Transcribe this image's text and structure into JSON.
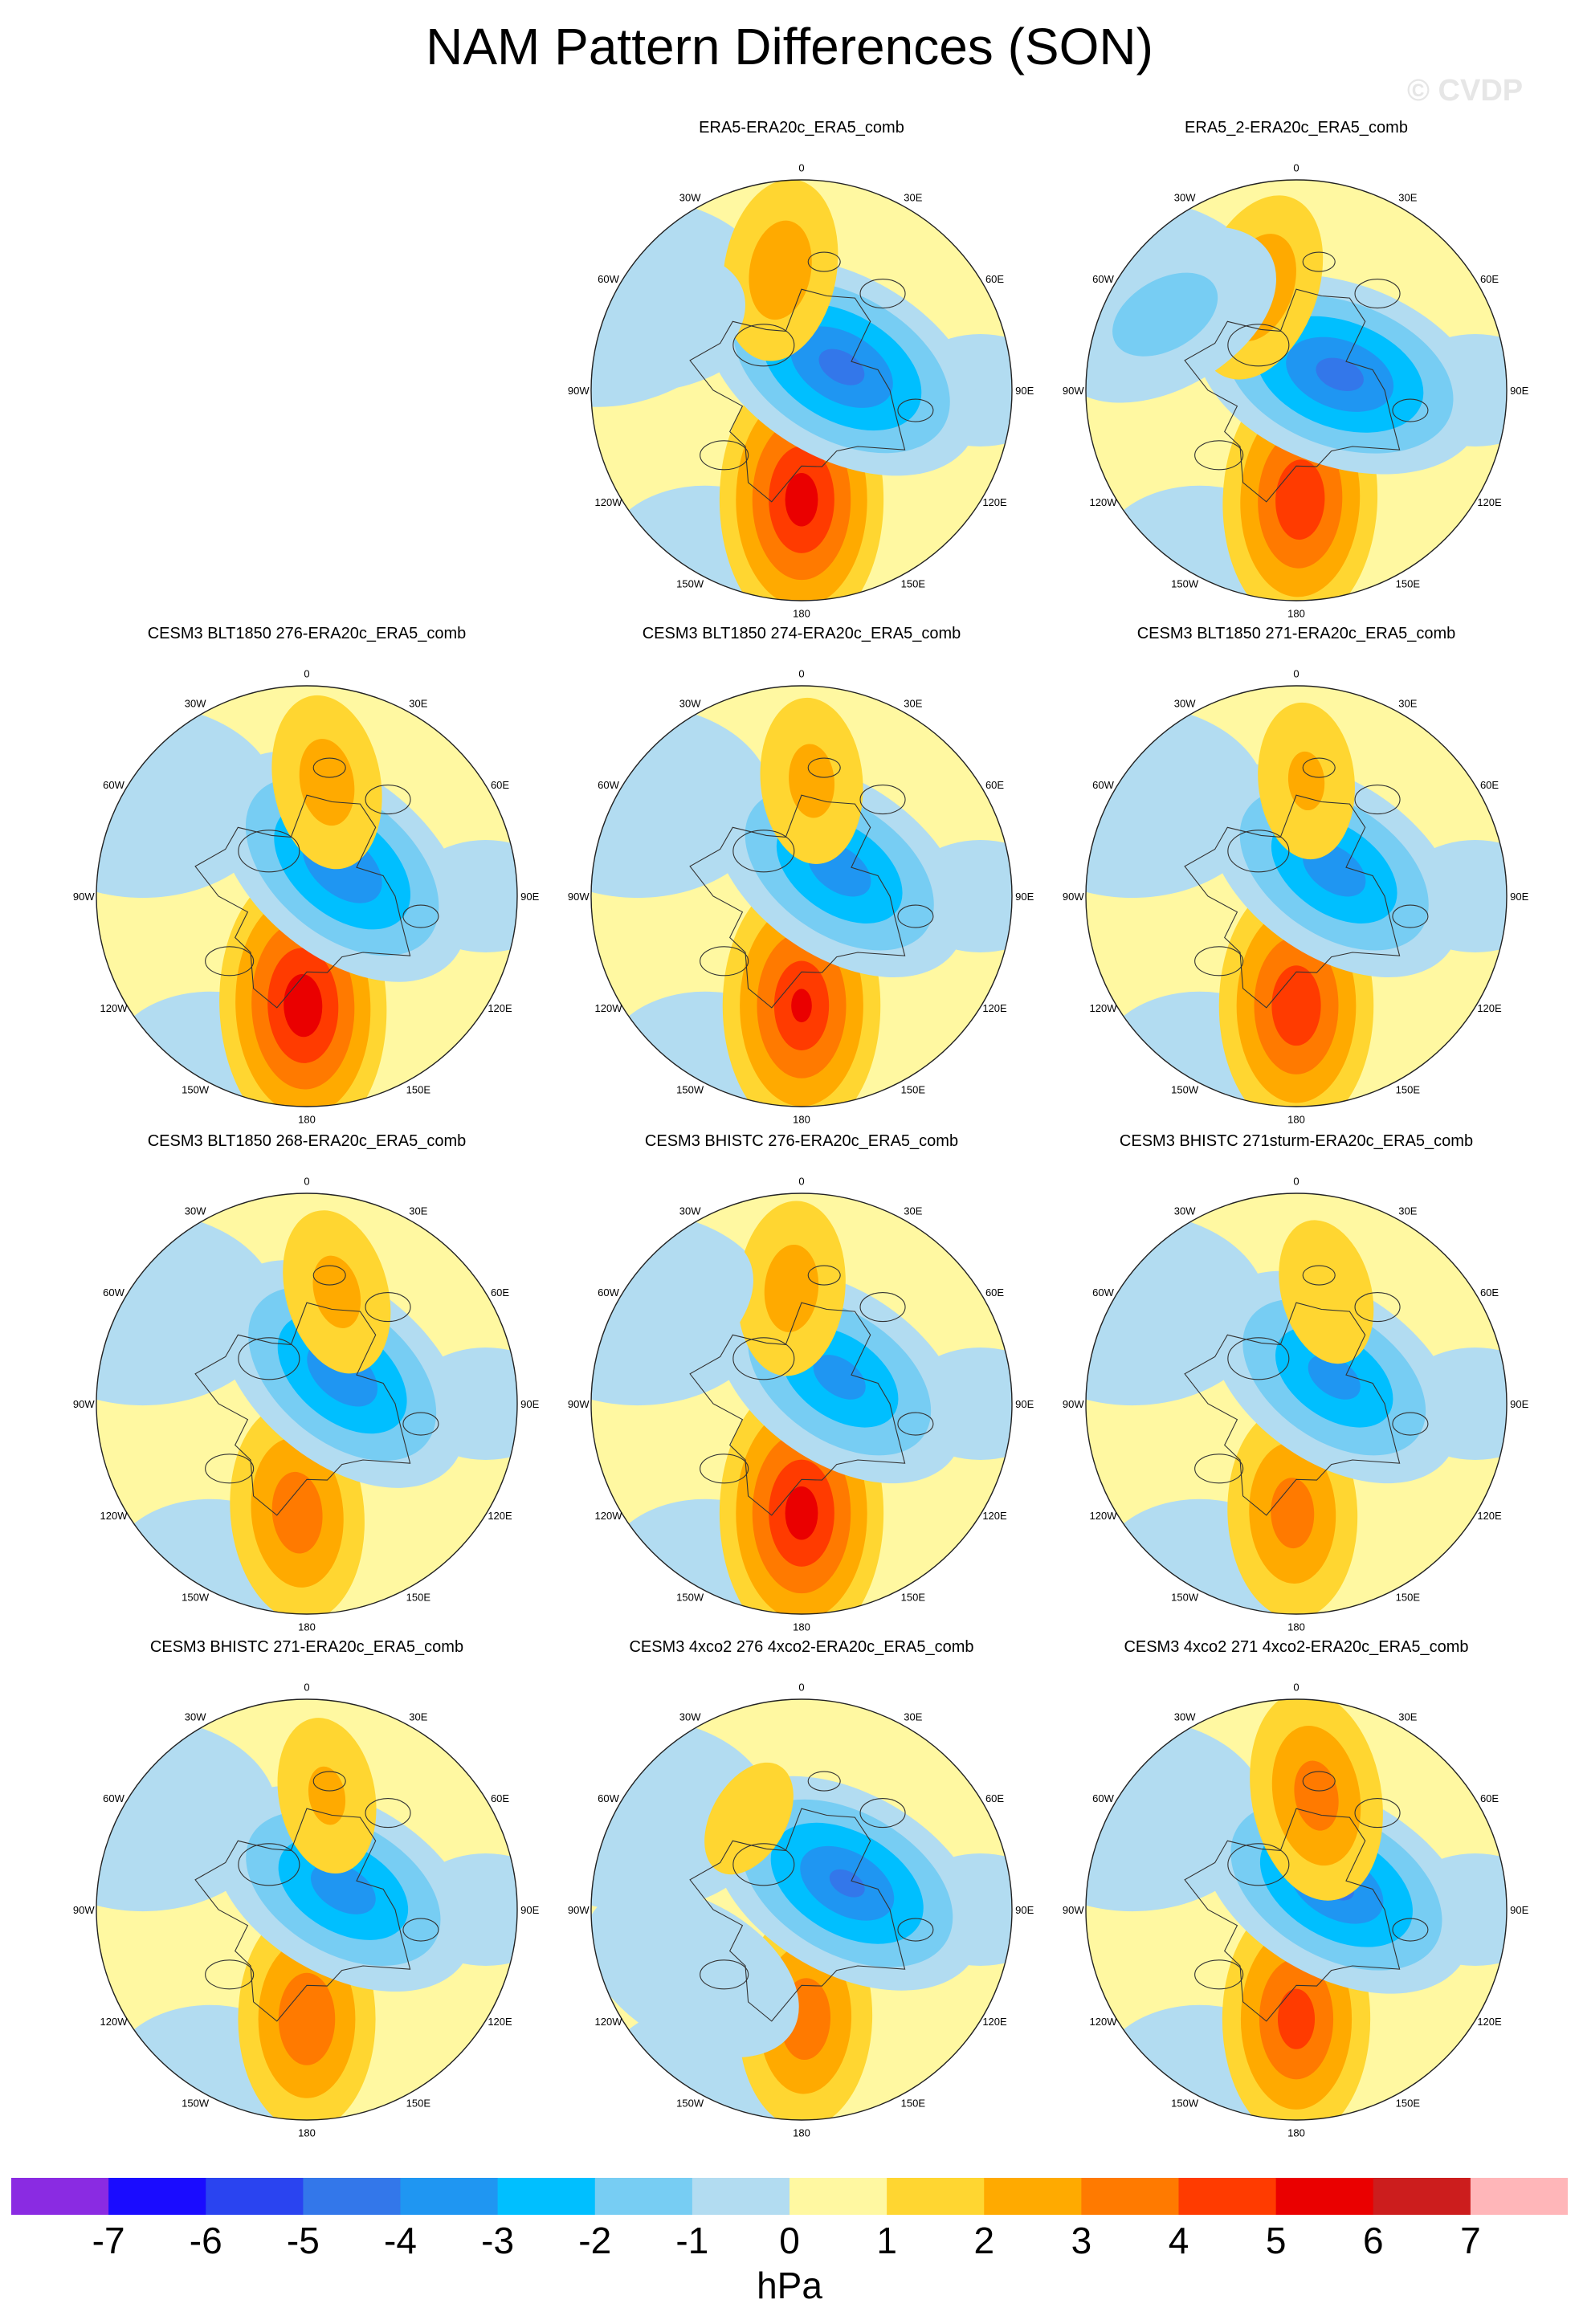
{
  "title": "NAM Pattern Differences (SON)",
  "watermark": "© CVDP",
  "lon_labels": [
    "180",
    "150E",
    "120E",
    "90E",
    "60E",
    "30E",
    "0",
    "30W",
    "60W",
    "90W",
    "120W",
    "150W"
  ],
  "panels": [
    {
      "title": "ERA5-ERA20c_ERA5_comb",
      "row": 0,
      "col": 1,
      "centers": [
        {
          "lon": 180,
          "r": 0.52,
          "val": 5.4
        },
        {
          "lon": 60,
          "r": 0.22,
          "val": -4.2
        },
        {
          "lon": 350,
          "r": 0.58,
          "val": 2.6
        },
        {
          "lon": 290,
          "r": 0.85,
          "val": -0.8
        }
      ]
    },
    {
      "title": "ERA5_2-ERA20c_ERA5_comb",
      "row": 0,
      "col": 2,
      "centers": [
        {
          "lon": 178,
          "r": 0.52,
          "val": 4.8
        },
        {
          "lon": 70,
          "r": 0.22,
          "val": -4.2
        },
        {
          "lon": 340,
          "r": 0.52,
          "val": 2.8
        },
        {
          "lon": 300,
          "r": 0.72,
          "val": -1.3
        }
      ]
    },
    {
      "title": "CESM3 BLT1850 276-ERA20c_ERA5_comb",
      "row": 1,
      "col": 0,
      "centers": [
        {
          "lon": 182,
          "r": 0.52,
          "val": 5.6
        },
        {
          "lon": 50,
          "r": 0.22,
          "val": -3.8
        },
        {
          "lon": 10,
          "r": 0.55,
          "val": 2.4
        },
        {
          "lon": 270,
          "r": 0.6,
          "val": 0.5
        }
      ]
    },
    {
      "title": "CESM3 BLT1850 274-ERA20c_ERA5_comb",
      "row": 1,
      "col": 1,
      "centers": [
        {
          "lon": 180,
          "r": 0.52,
          "val": 5.0
        },
        {
          "lon": 55,
          "r": 0.22,
          "val": -3.4
        },
        {
          "lon": 5,
          "r": 0.55,
          "val": 2.2
        },
        {
          "lon": 300,
          "r": 0.85,
          "val": -0.8
        }
      ]
    },
    {
      "title": "CESM3 BLT1850 271-ERA20c_ERA5_comb",
      "row": 1,
      "col": 2,
      "centers": [
        {
          "lon": 180,
          "r": 0.52,
          "val": 4.8
        },
        {
          "lon": 55,
          "r": 0.22,
          "val": -3.4
        },
        {
          "lon": 5,
          "r": 0.55,
          "val": 2.0
        },
        {
          "lon": 300,
          "r": 0.85,
          "val": -0.8
        }
      ]
    },
    {
      "title": "CESM3 BLT1850 268-ERA20c_ERA5_comb",
      "row": 2,
      "col": 0,
      "centers": [
        {
          "lon": 185,
          "r": 0.52,
          "val": 3.6
        },
        {
          "lon": 50,
          "r": 0.22,
          "val": -3.6
        },
        {
          "lon": 15,
          "r": 0.55,
          "val": 2.2
        },
        {
          "lon": 300,
          "r": 0.85,
          "val": -0.8
        }
      ]
    },
    {
      "title": "CESM3 BHISTC 276-ERA20c_ERA5_comb",
      "row": 2,
      "col": 1,
      "centers": [
        {
          "lon": 180,
          "r": 0.52,
          "val": 5.4
        },
        {
          "lon": 55,
          "r": 0.22,
          "val": -3.2
        },
        {
          "lon": 355,
          "r": 0.55,
          "val": 2.4
        },
        {
          "lon": 300,
          "r": 0.85,
          "val": -0.8
        }
      ]
    },
    {
      "title": "CESM3 BHISTC 271sturm-ERA20c_ERA5_comb",
      "row": 2,
      "col": 2,
      "centers": [
        {
          "lon": 182,
          "r": 0.52,
          "val": 3.4
        },
        {
          "lon": 55,
          "r": 0.22,
          "val": -3.2
        },
        {
          "lon": 15,
          "r": 0.55,
          "val": 1.8
        },
        {
          "lon": 300,
          "r": 0.85,
          "val": -0.8
        }
      ]
    },
    {
      "title": "CESM3 BHISTC 271-ERA20c_ERA5_comb",
      "row": 3,
      "col": 0,
      "centers": [
        {
          "lon": 180,
          "r": 0.52,
          "val": 3.8
        },
        {
          "lon": 60,
          "r": 0.2,
          "val": -3.4
        },
        {
          "lon": 10,
          "r": 0.55,
          "val": 2.0
        },
        {
          "lon": 300,
          "r": 0.85,
          "val": -0.8
        }
      ]
    },
    {
      "title": "CESM3 4xco2 276 4xco2-ERA20c_ERA5_comb",
      "row": 3,
      "col": 1,
      "centers": [
        {
          "lon": 178,
          "r": 0.52,
          "val": 3.6
        },
        {
          "lon": 60,
          "r": 0.25,
          "val": -4.0
        },
        {
          "lon": 330,
          "r": 0.5,
          "val": 1.4
        },
        {
          "lon": 240,
          "r": 0.6,
          "val": -0.8
        }
      ]
    },
    {
      "title": "CESM3 4xco2 271 4xco2-ERA20c_ERA5_comb",
      "row": 3,
      "col": 2,
      "centers": [
        {
          "lon": 180,
          "r": 0.52,
          "val": 4.4
        },
        {
          "lon": 60,
          "r": 0.22,
          "val": -4.0
        },
        {
          "lon": 10,
          "r": 0.55,
          "val": 3.4
        },
        {
          "lon": 300,
          "r": 0.85,
          "val": -0.8
        }
      ]
    }
  ],
  "colorbar": {
    "units": "hPa",
    "ticks": [
      "-7",
      "-6",
      "-5",
      "-4",
      "-3",
      "-2",
      "-1",
      "0",
      "1",
      "2",
      "3",
      "4",
      "5",
      "6",
      "7"
    ],
    "colors": [
      "#8a2be2",
      "#1a0cff",
      "#2a44f0",
      "#3377ea",
      "#1f96f2",
      "#00bfff",
      "#77cdf3",
      "#b2dcf1",
      "#fff8a1",
      "#ffd631",
      "#ffaa00",
      "#ff7a00",
      "#ff3b00",
      "#ea0000",
      "#cc1d1d",
      "#ffb6b9"
    ]
  }
}
